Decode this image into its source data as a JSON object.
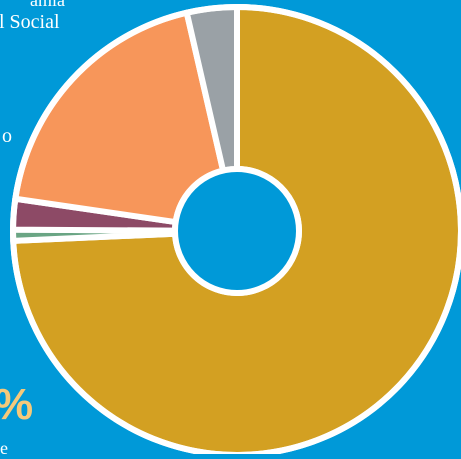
{
  "colors": {
    "background": "#0099d8",
    "separator": "#ffffff"
  },
  "labels": {
    "top_line1": "amia",
    "top_line2": "l Social",
    "middle": "o",
    "percent": "%",
    "bottom": "e"
  },
  "chart_data": {
    "type": "pie",
    "variant": "donut",
    "title": "",
    "slices": [
      {
        "value": 74.3,
        "color": "#d3a022"
      },
      {
        "value": 0.8,
        "color": "#6aa584"
      },
      {
        "value": 2.2,
        "color": "#8d4a66"
      },
      {
        "value": 19.1,
        "color": "#f7965a"
      },
      {
        "value": 3.6,
        "color": "#9aa1a6"
      }
    ]
  }
}
